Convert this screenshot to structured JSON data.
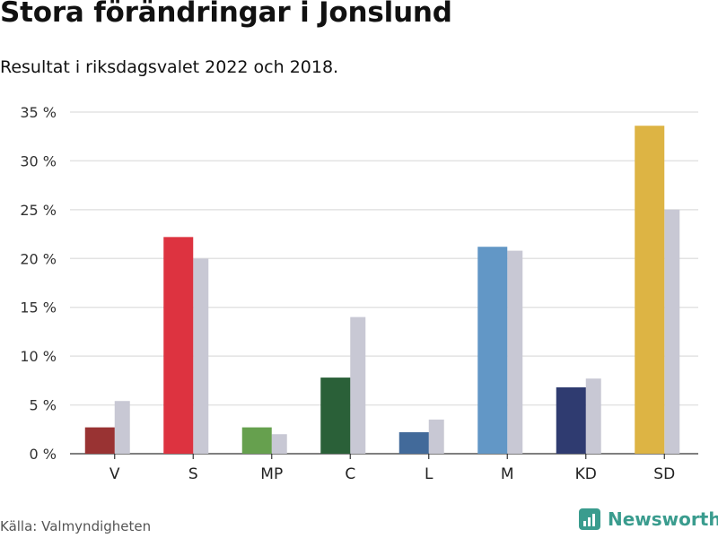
{
  "title": "Stora förändringar i Jonslund",
  "subtitle": "Resultat i riksdagsvalet 2022 och 2018.",
  "source": "Källa: Valmyndigheten",
  "brand": "Newsworthy",
  "colors": {
    "V": "#993333",
    "S": "#dd3340",
    "MP": "#66a04e",
    "C": "#2a6038",
    "L": "#426a9a",
    "M": "#6297c6",
    "KD": "#2f3b70",
    "SD": "#ddb444",
    "previous": "#c8c8d4",
    "grid": "#e3e3e3",
    "axis": "#333333",
    "brand": "#3a9c8e"
  },
  "chart_data": {
    "type": "bar",
    "categories": [
      "V",
      "S",
      "MP",
      "C",
      "L",
      "M",
      "KD",
      "SD"
    ],
    "series": [
      {
        "values": [
          2.7,
          22.2,
          2.7,
          7.8,
          2.2,
          21.2,
          6.8,
          33.6
        ]
      },
      {
        "values": [
          5.4,
          20.0,
          2.0,
          14.0,
          3.5,
          20.8,
          7.7,
          25.0
        ]
      }
    ],
    "yticks": [
      "0 %",
      "5 %",
      "10 %",
      "15 %",
      "20 %",
      "25 %",
      "30 %",
      "35 %"
    ],
    "ylim": [
      0,
      35
    ],
    "grid": true
  }
}
